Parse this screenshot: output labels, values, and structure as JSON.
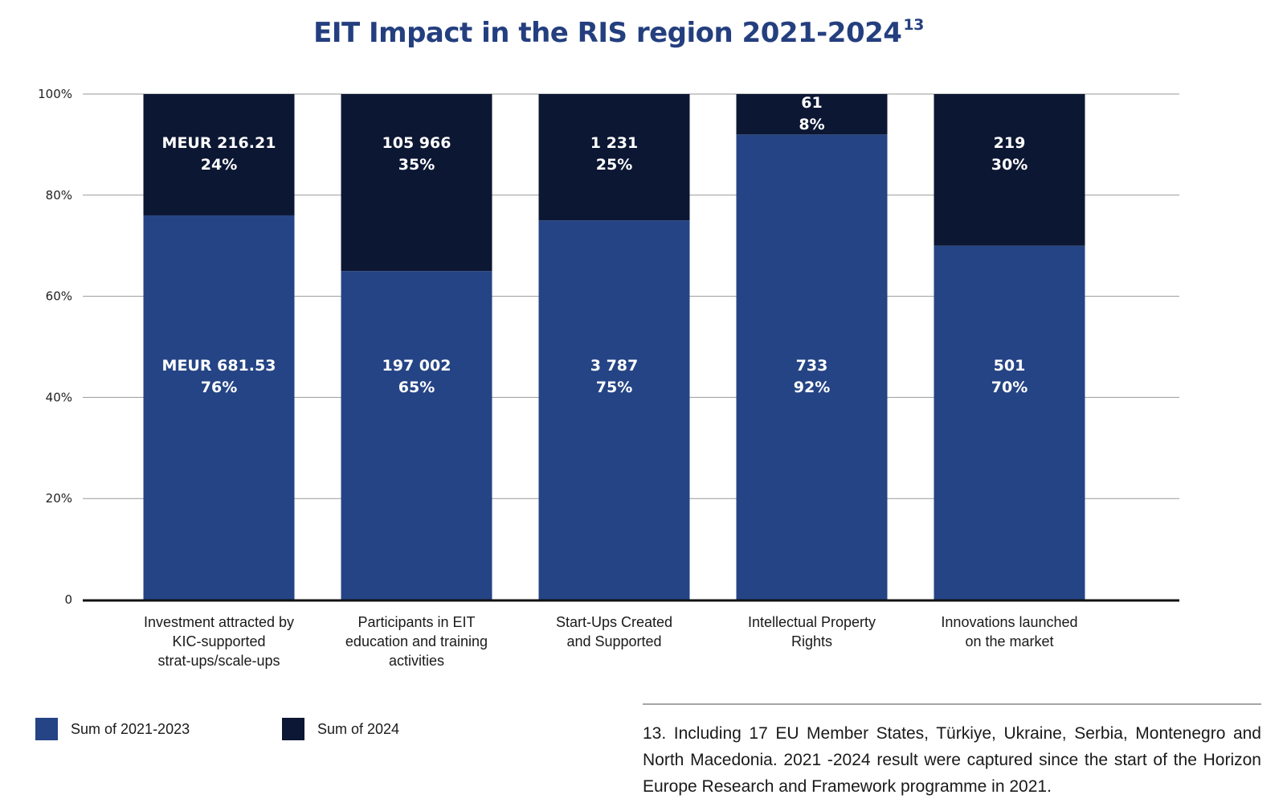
{
  "title": {
    "text": "EIT Impact in the RIS region 2021-2024",
    "footnote_ref": "13"
  },
  "chart_data": {
    "type": "bar",
    "stacked": true,
    "normalized": true,
    "title": "EIT Impact in the RIS region 2021-2024",
    "xlabel": "",
    "ylabel": "",
    "ylim": [
      0,
      100
    ],
    "yticks": [
      0,
      20,
      40,
      60,
      80,
      100
    ],
    "ytick_labels": [
      "0",
      "20%",
      "40%",
      "60%",
      "80%",
      "100%"
    ],
    "grid": true,
    "legend_position": "bottom-left",
    "categories": [
      [
        "Investment attracted by",
        "KIC-supported",
        "strat-ups/scale-ups"
      ],
      [
        "Participants in EIT",
        "education and training",
        "activities"
      ],
      [
        "Start-Ups Created",
        "and Supported"
      ],
      [
        "Intellectual Property",
        "Rights"
      ],
      [
        "Innovations launched",
        "on the market"
      ]
    ],
    "series": [
      {
        "name": "Sum of 2021-2023",
        "color": "#254485",
        "values": [
          76,
          65,
          75,
          92,
          70
        ],
        "value_labels": [
          "MEUR 681.53",
          "197 002",
          "3 787",
          "733",
          "501"
        ],
        "percent_labels": [
          "76%",
          "65%",
          "75%",
          "92%",
          "70%"
        ]
      },
      {
        "name": "Sum of 2024",
        "color": "#0c1733",
        "values": [
          24,
          35,
          25,
          8,
          30
        ],
        "value_labels": [
          "MEUR 216.21",
          "105 966",
          "1 231",
          "61",
          "219"
        ],
        "percent_labels": [
          "24%",
          "35%",
          "25%",
          "8%",
          "30%"
        ]
      }
    ]
  },
  "legend": [
    {
      "label": "Sum of 2021-2023",
      "color": "#254485"
    },
    {
      "label": "Sum of 2024",
      "color": "#0c1733"
    }
  ],
  "footnote": {
    "text": "13. Including 17 EU Member States, Türkiye, Ukraine, Serbia, Montenegro and North Macedonia. 2021 -2024 result were captured since the start of the Hori­zon Europe Research and Framework programme in 2021."
  }
}
